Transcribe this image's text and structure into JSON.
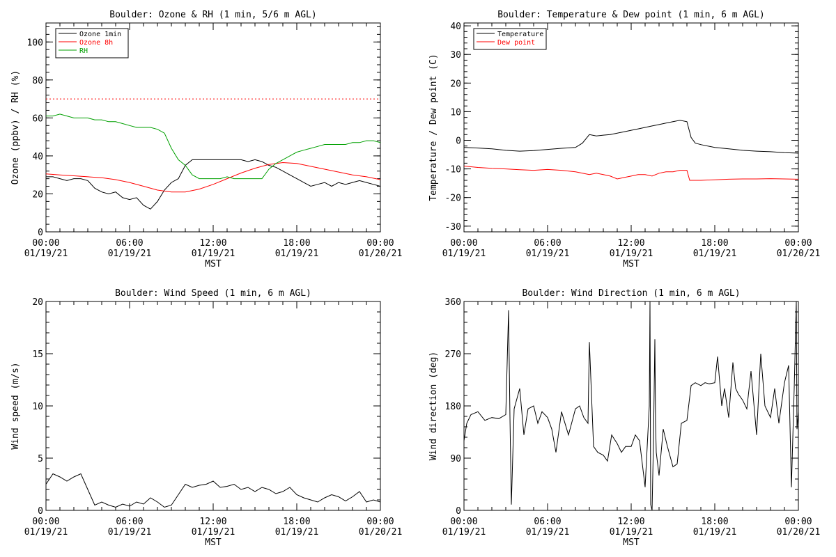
{
  "chart_data": [
    {
      "type": "line",
      "title": "Boulder: Ozone & RH (1 min, 5/6 m AGL)",
      "xlabel": "MST",
      "ylabel": "Ozone (ppbv) / RH (%)",
      "xlim": [
        0,
        24
      ],
      "ylim": [
        0,
        110
      ],
      "yticks": [
        0,
        20,
        40,
        60,
        80,
        100
      ],
      "xtick_labels": [
        [
          "00:00",
          "01/19/21"
        ],
        [
          "06:00",
          "01/19/21"
        ],
        [
          "12:00",
          "01/19/21"
        ],
        [
          "18:00",
          "01/19/21"
        ],
        [
          "00:00",
          "01/20/21"
        ]
      ],
      "legend": "top-left",
      "series": [
        {
          "name": "Ozone 1min",
          "color": "#000000",
          "style": "solid",
          "x": [
            0,
            0.5,
            1,
            1.5,
            2,
            2.5,
            3,
            3.5,
            4,
            4.5,
            5,
            5.5,
            6,
            6.5,
            7,
            7.5,
            8,
            8.5,
            9,
            9.5,
            10,
            10.5,
            11,
            11.5,
            12,
            12.5,
            13,
            13.5,
            14,
            14.5,
            15,
            15.5,
            16,
            16.5,
            17,
            17.5,
            18,
            18.5,
            19,
            19.5,
            20,
            20.5,
            21,
            21.5,
            22,
            22.5,
            23,
            23.5,
            24
          ],
          "y": [
            29,
            29,
            28,
            27,
            28,
            28,
            27,
            23,
            21,
            20,
            21,
            18,
            17,
            18,
            14,
            12,
            16,
            22,
            26,
            28,
            35,
            38,
            38,
            38,
            38,
            38,
            38,
            38,
            38,
            37,
            38,
            37,
            35,
            34,
            32,
            30,
            28,
            26,
            24,
            25,
            26,
            24,
            26,
            25,
            26,
            27,
            26,
            25,
            24
          ]
        },
        {
          "name": "Ozone 8h",
          "color": "#ff0000",
          "style": "solid",
          "x": [
            0,
            1,
            2,
            3,
            4,
            5,
            6,
            7,
            8,
            9,
            10,
            11,
            12,
            13,
            14,
            15,
            16,
            17,
            18,
            19,
            20,
            21,
            22,
            23,
            24
          ],
          "y": [
            30.5,
            30,
            29.5,
            29,
            28.5,
            27.5,
            26,
            24,
            22,
            21,
            21,
            22.5,
            25,
            28,
            31,
            33.5,
            35.5,
            36.5,
            36,
            34.5,
            33,
            31.5,
            30,
            29,
            27.5
          ]
        },
        {
          "name": "RH",
          "color": "#00a000",
          "style": "solid",
          "x": [
            0,
            0.5,
            1,
            1.5,
            2,
            2.5,
            3,
            3.5,
            4,
            4.5,
            5,
            5.5,
            6,
            6.5,
            7,
            7.5,
            8,
            8.5,
            9,
            9.5,
            10,
            10.5,
            11,
            11.5,
            12,
            12.5,
            13,
            13.5,
            14,
            14.5,
            15,
            15.5,
            16,
            16.5,
            17,
            17.5,
            18,
            18.5,
            19,
            19.5,
            20,
            20.5,
            21,
            21.5,
            22,
            22.5,
            23,
            23.5,
            24
          ],
          "y": [
            61,
            61,
            62,
            61,
            60,
            60,
            60,
            59,
            59,
            58,
            58,
            57,
            56,
            55,
            55,
            55,
            54,
            52,
            44,
            38,
            35,
            30,
            28,
            28,
            28,
            28,
            29,
            28,
            28,
            28,
            28,
            28,
            33,
            36,
            38,
            40,
            42,
            43,
            44,
            45,
            46,
            46,
            46,
            46,
            47,
            47,
            48,
            48,
            47
          ]
        },
        {
          "name": "",
          "color": "#ff0000",
          "style": "dotted",
          "x": [
            0,
            24
          ],
          "y": [
            70,
            70
          ]
        }
      ]
    },
    {
      "type": "line",
      "title": "Boulder: Temperature & Dew point (1 min, 6 m AGL)",
      "xlabel": "MST",
      "ylabel": "Temperature / Dew point (C)",
      "xlim": [
        0,
        24
      ],
      "ylim": [
        -32,
        41
      ],
      "yticks": [
        -30,
        -20,
        -10,
        0,
        10,
        20,
        30,
        40
      ],
      "xtick_labels": [
        [
          "00:00",
          "01/19/21"
        ],
        [
          "06:00",
          "01/19/21"
        ],
        [
          "12:00",
          "01/19/21"
        ],
        [
          "18:00",
          "01/19/21"
        ],
        [
          "00:00",
          "01/20/21"
        ]
      ],
      "legend": "top-left",
      "series": [
        {
          "name": "Temperature",
          "color": "#000000",
          "style": "solid",
          "x": [
            0,
            1,
            2,
            3,
            4,
            5,
            6,
            7,
            8,
            8.5,
            9,
            9.5,
            10,
            10.5,
            11,
            11.5,
            12,
            12.5,
            13,
            13.5,
            14,
            14.5,
            15,
            15.5,
            16,
            16.3,
            16.6,
            17,
            18,
            19,
            20,
            21,
            22,
            23,
            24
          ],
          "y": [
            -2.5,
            -2.7,
            -3,
            -3.5,
            -3.8,
            -3.6,
            -3.2,
            -2.8,
            -2.5,
            -1,
            2,
            1.5,
            1.8,
            2,
            2.5,
            3,
            3.5,
            4,
            4.5,
            5,
            5.5,
            6,
            6.5,
            7,
            6.5,
            1,
            -1,
            -1.5,
            -2.5,
            -3,
            -3.5,
            -3.8,
            -4,
            -4.3,
            -4.5
          ]
        },
        {
          "name": "Dew point",
          "color": "#ff0000",
          "style": "solid",
          "x": [
            0,
            1,
            2,
            3,
            4,
            5,
            6,
            7,
            8,
            8.5,
            9,
            9.5,
            10,
            10.5,
            11,
            11.5,
            12,
            12.5,
            13,
            13.5,
            14,
            14.5,
            15,
            15.5,
            16,
            16.2,
            17,
            18,
            19,
            20,
            21,
            22,
            23,
            24
          ],
          "y": [
            -9,
            -9.5,
            -9.8,
            -10,
            -10.3,
            -10.5,
            -10.2,
            -10.5,
            -11,
            -11.5,
            -12,
            -11.5,
            -12,
            -12.5,
            -13.5,
            -13,
            -12.5,
            -12,
            -12,
            -12.5,
            -11.5,
            -11,
            -11,
            -10.5,
            -10.5,
            -14,
            -14,
            -13.8,
            -13.6,
            -13.5,
            -13.5,
            -13.4,
            -13.5,
            -13.6
          ]
        }
      ]
    },
    {
      "type": "line",
      "title": "Boulder: Wind Speed (1 min, 6 m AGL)",
      "xlabel": "MST",
      "ylabel": "Wind speed (m/s)",
      "xlim": [
        0,
        24
      ],
      "ylim": [
        0,
        20
      ],
      "yticks": [
        0,
        5,
        10,
        15,
        20
      ],
      "xtick_labels": [
        [
          "00:00",
          "01/19/21"
        ],
        [
          "06:00",
          "01/19/21"
        ],
        [
          "12:00",
          "01/19/21"
        ],
        [
          "18:00",
          "01/19/21"
        ],
        [
          "00:00",
          "01/20/21"
        ]
      ],
      "series": [
        {
          "name": "",
          "color": "#000000",
          "style": "solid",
          "x": [
            0,
            0.5,
            1,
            1.5,
            2,
            2.5,
            3,
            3.5,
            4,
            4.5,
            5,
            5.5,
            6,
            6.5,
            7,
            7.5,
            8,
            8.5,
            9,
            9.5,
            10,
            10.5,
            11,
            11.5,
            12,
            12.5,
            13,
            13.5,
            14,
            14.5,
            15,
            15.5,
            16,
            16.5,
            17,
            17.5,
            18,
            18.5,
            19,
            19.5,
            20,
            20.5,
            21,
            21.5,
            22,
            22.5,
            23,
            23.5,
            24
          ],
          "y": [
            2.5,
            3.5,
            3.2,
            2.8,
            3.2,
            3.5,
            2,
            0.5,
            0.8,
            0.5,
            0.3,
            0.6,
            0.4,
            0.8,
            0.6,
            1.2,
            0.8,
            0.3,
            0.5,
            1.5,
            2.5,
            2.2,
            2.4,
            2.5,
            2.8,
            2.2,
            2.3,
            2.5,
            2,
            2.2,
            1.8,
            2.2,
            2,
            1.6,
            1.8,
            2.2,
            1.5,
            1.2,
            1,
            0.8,
            1.2,
            1.5,
            1.3,
            0.9,
            1.3,
            1.8,
            0.8,
            1,
            0.8
          ]
        }
      ]
    },
    {
      "type": "line",
      "title": "Boulder: Wind Direction (1 min, 6 m AGL)",
      "xlabel": "MST",
      "ylabel": "Wind direction (deg)",
      "xlim": [
        0,
        24
      ],
      "ylim": [
        0,
        360
      ],
      "yticks": [
        0,
        90,
        180,
        270,
        360
      ],
      "xtick_labels": [
        [
          "00:00",
          "01/19/21"
        ],
        [
          "06:00",
          "01/19/21"
        ],
        [
          "12:00",
          "01/19/21"
        ],
        [
          "18:00",
          "01/19/21"
        ],
        [
          "00:00",
          "01/20/21"
        ]
      ],
      "series": [
        {
          "name": "",
          "color": "#000000",
          "style": "solid",
          "x": [
            0,
            0.2,
            0.5,
            1,
            1.5,
            2,
            2.5,
            3,
            3.2,
            3.3,
            3.4,
            3.6,
            4,
            4.3,
            4.6,
            5,
            5.3,
            5.6,
            6,
            6.3,
            6.6,
            7,
            7.5,
            8,
            8.3,
            8.6,
            8.9,
            9,
            9.3,
            9.6,
            10,
            10.3,
            10.6,
            11,
            11.3,
            11.6,
            12,
            12.3,
            12.6,
            13,
            13.3,
            13.35,
            13.4,
            13.5,
            13.6,
            13.7,
            13.75,
            13.8,
            14,
            14.3,
            14.6,
            15,
            15.3,
            15.6,
            16,
            16.3,
            16.6,
            17,
            17.3,
            17.6,
            18,
            18.2,
            18.5,
            18.7,
            19,
            19.3,
            19.5,
            19.7,
            20,
            20.3,
            20.6,
            21,
            21.3,
            21.6,
            22,
            22.3,
            22.6,
            23,
            23.3,
            23.5,
            23.7,
            23.85,
            23.9,
            24
          ],
          "y": [
            120,
            150,
            165,
            170,
            155,
            160,
            158,
            165,
            345,
            160,
            10,
            175,
            210,
            130,
            175,
            180,
            150,
            170,
            160,
            140,
            100,
            170,
            130,
            175,
            180,
            160,
            150,
            290,
            110,
            100,
            95,
            85,
            130,
            115,
            100,
            110,
            110,
            130,
            120,
            40,
            180,
            360,
            10,
            0,
            120,
            295,
            150,
            100,
            60,
            140,
            110,
            75,
            80,
            150,
            155,
            215,
            220,
            215,
            220,
            218,
            220,
            265,
            180,
            210,
            160,
            255,
            210,
            200,
            190,
            175,
            240,
            130,
            270,
            180,
            160,
            210,
            150,
            220,
            250,
            40,
            210,
            360,
            140,
            170
          ]
        }
      ]
    }
  ]
}
